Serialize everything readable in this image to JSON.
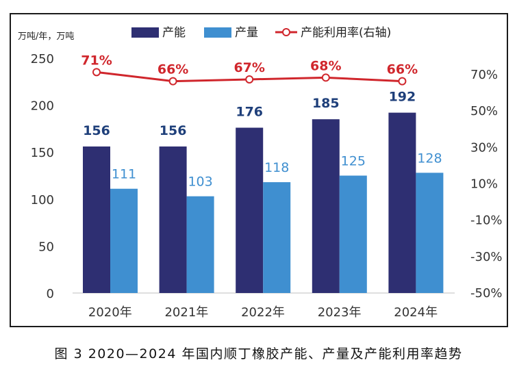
{
  "caption": "图 3 2020—2024 年国内顺丁橡胶产能、产量及产能利用率趋势",
  "chart_data": {
    "type": "bar",
    "categories": [
      "2020年",
      "2021年",
      "2022年",
      "2023年",
      "2024年"
    ],
    "series": [
      {
        "name": "产能",
        "values": [
          156,
          156,
          176,
          185,
          192
        ],
        "color": "#2e2f72",
        "label_color": "#1e3f7a"
      },
      {
        "name": "产量",
        "values": [
          111,
          103,
          118,
          125,
          128
        ],
        "color": "#3f8fd0",
        "label_color": "#3f8fd0"
      },
      {
        "name": "产能利用率(右轴)",
        "type": "line",
        "axis": "right",
        "values": [
          71,
          66,
          67,
          68,
          66
        ],
        "labels": [
          "71%",
          "66%",
          "67%",
          "68%",
          "66%"
        ],
        "color": "#d0262c"
      }
    ],
    "ylabel": "万吨/年，万吨",
    "ylim": [
      0,
      250
    ],
    "yticks": [
      0,
      50,
      100,
      150,
      200,
      250
    ],
    "y2lim": [
      -50,
      80
    ],
    "y2ticks": [
      -50,
      -30,
      -10,
      10,
      30,
      50,
      70
    ],
    "y2ticklabels": [
      "-50%",
      "-30%",
      "-10%",
      "10%",
      "30%",
      "50%",
      "70%"
    ],
    "legend_position": "top-center",
    "grid": false
  }
}
